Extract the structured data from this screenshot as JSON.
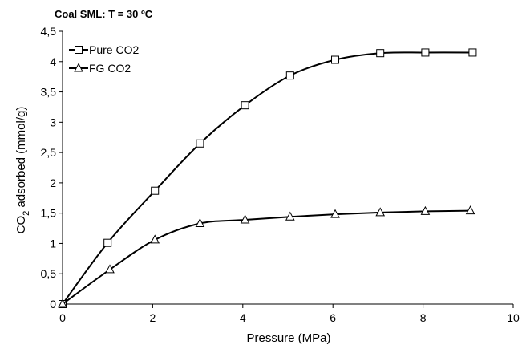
{
  "chart_data": {
    "type": "line",
    "title": "Coal SML: T = 30 ºC",
    "xlabel": "Pressure (MPa)",
    "ylabel_parts": {
      "pre": "CO",
      "sub": "2",
      "post": " adsorbed (mmol/g)"
    },
    "xlim": [
      0,
      10
    ],
    "ylim": [
      0,
      4.5
    ],
    "xticks": [
      0,
      2,
      4,
      6,
      8,
      10
    ],
    "xtick_labels": [
      "0",
      "2",
      "4",
      "6",
      "8",
      "10"
    ],
    "yticks": [
      0,
      0.5,
      1,
      1.5,
      2,
      2.5,
      3,
      3.5,
      4,
      4.5
    ],
    "ytick_labels": [
      "0",
      "0,5",
      "1",
      "1,5",
      "2",
      "2,5",
      "3",
      "3,5",
      "4",
      "4,5"
    ],
    "grid": false,
    "legend_position": "top-left",
    "series": [
      {
        "name": "Pure CO2",
        "marker": "square",
        "x": [
          0,
          1,
          2.05,
          3.05,
          4.05,
          5.05,
          6.05,
          7.05,
          8.05,
          9.1
        ],
        "y": [
          0,
          1.01,
          1.87,
          2.65,
          3.28,
          3.77,
          4.03,
          4.14,
          4.15,
          4.15
        ]
      },
      {
        "name": "FG CO2",
        "marker": "triangle",
        "x": [
          0,
          1.05,
          2.05,
          3.05,
          4.05,
          5.05,
          6.05,
          7.05,
          8.05,
          9.05
        ],
        "y": [
          0,
          0.57,
          1.06,
          1.33,
          1.39,
          1.44,
          1.48,
          1.51,
          1.53,
          1.54
        ]
      }
    ]
  }
}
